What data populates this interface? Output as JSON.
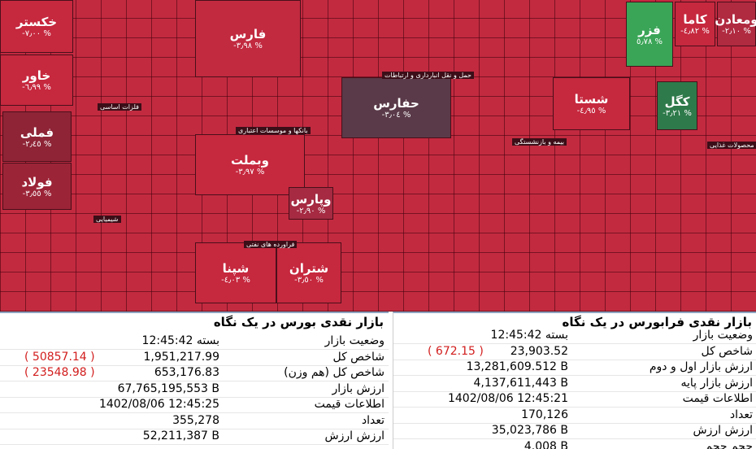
{
  "treemap": {
    "tiles": [
      {
        "label": "خکستر",
        "change": "-٧٫٠٠ %",
        "color": "#c6283e"
      },
      {
        "label": "خاور",
        "change": "-٦٫٩٩ %",
        "color": "#c6283e"
      },
      {
        "label": "فملی",
        "change": "-٢٫٤٥ %",
        "color": "#8e2436"
      },
      {
        "label": "فولاد",
        "change": "-٣٫٥٥ %",
        "color": "#9c2437"
      },
      {
        "label": "فارس",
        "change": "-٣٫٩٨ %",
        "color": "#c22a40"
      },
      {
        "label": "وبملت",
        "change": "-٣٫٩٧ %",
        "color": "#c6283e"
      },
      {
        "label": "شپنا",
        "change": "-٤٫٠٣ %",
        "color": "#c6283e"
      },
      {
        "label": "حفارس",
        "change": "-٣٫٠٤ %",
        "color": "#5a3a48"
      },
      {
        "label": "شستا",
        "change": "-٤٫٩٥ %",
        "color": "#c6283e"
      },
      {
        "label": "فزر",
        "change": "٥٫٧٨ %",
        "color": "#3aa557"
      },
      {
        "label": "کاما",
        "change": "-٤٫٨٢ %",
        "color": "#c6283e"
      },
      {
        "label": "ومعادن",
        "change": "-٢٫١٠ %",
        "color": "#b02a40"
      },
      {
        "label": "کگل",
        "change": "-٣٫٢١ %",
        "color": "#2e7a4a"
      },
      {
        "label": "وپارس",
        "change": "-٢٫٩٠ %",
        "color": "#a52a42"
      },
      {
        "label": "شتران",
        "change": "-٣٫٥٠ %",
        "color": "#c6283e"
      }
    ],
    "sectors": [
      "فلزات اساسی",
      "بانکها و موسسات اعتباری",
      "حمل و نقل انبارداری و ارتباطات",
      "فراورده های نفتی",
      "شیمیایی",
      "محصولات غذایی",
      "بیمه و بازنشستگی"
    ]
  },
  "panels": [
    {
      "title": "بازار نقدی بورس در یک نگاه",
      "rows": [
        {
          "label": "وضعیت بازار",
          "value": "بسته 12:45:42"
        },
        {
          "label": "شاخص کل",
          "value": "1,951,217.99",
          "change": "( 50857.14 )"
        },
        {
          "label": "شاخص کل (هم وزن)",
          "value": "653,176.83",
          "change": "( 23548.98 )"
        },
        {
          "label": "ارزش بازار",
          "value": "67,765,195,553 B"
        },
        {
          "label": "اطلاعات قیمت",
          "value": "1402/08/06 12:45:25"
        },
        {
          "label": "تعداد",
          "value": "355,278"
        },
        {
          "label": "ارزش ارزش",
          "value": "52,211,387 B"
        }
      ]
    },
    {
      "title": "بازار نقدی فرابورس در یک نگاه",
      "rows": [
        {
          "label": "وضعیت بازار",
          "value": "بسته 12:45:42"
        },
        {
          "label": "شاخص کل",
          "value": "23,903.52",
          "change": "( 672.15 )"
        },
        {
          "label": "ارزش بازار اول و دوم",
          "value": "13,281,609.512 B"
        },
        {
          "label": "ارزش بازار پایه",
          "value": "4,137,611,443 B"
        },
        {
          "label": "اطلاعات قیمت",
          "value": "1402/08/06 12:45:21"
        },
        {
          "label": "تعداد",
          "value": "170,126"
        },
        {
          "label": "ارزش ارزش",
          "value": "35,023,786 B"
        },
        {
          "label": "حجم حجم",
          "value": "4.008 B"
        }
      ]
    }
  ]
}
